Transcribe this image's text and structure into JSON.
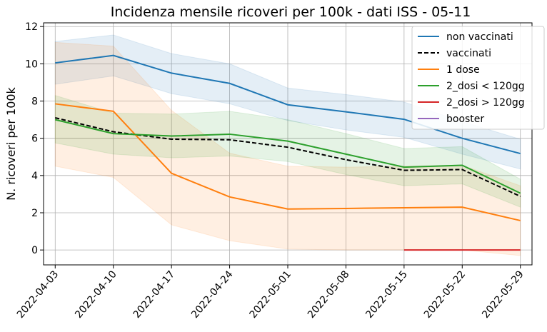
{
  "chart_data": {
    "type": "line",
    "title": "Incidenza mensile ricoveri per 100k - dati ISS - 05-11",
    "xlabel": "",
    "ylabel": "N. ricoveri per 100k",
    "x": [
      "2022-04-03",
      "2022-04-10",
      "2022-04-17",
      "2022-04-24",
      "2022-05-01",
      "2022-05-08",
      "2022-05-15",
      "2022-05-22",
      "2022-05-29"
    ],
    "ylim": [
      -0.8,
      12.2
    ],
    "yticks": [
      0,
      2,
      4,
      6,
      8,
      10,
      12
    ],
    "grid": true,
    "legend_position": "top-right",
    "series": [
      {
        "name": "non vaccinati",
        "color": "#1f77b4",
        "dash": "solid",
        "values": [
          10.05,
          10.45,
          9.5,
          8.95,
          7.8,
          7.42,
          7.02,
          6.0,
          5.18
        ],
        "band_low": [
          8.9,
          9.35,
          8.4,
          7.85,
          6.95,
          6.45,
          6.05,
          5.15,
          4.35
        ],
        "band_high": [
          11.2,
          11.55,
          10.55,
          10.0,
          8.7,
          8.35,
          7.95,
          6.9,
          5.95
        ]
      },
      {
        "name": "vaccinati",
        "color": "#000000",
        "dash": "dashed",
        "values": [
          7.1,
          6.35,
          5.95,
          5.92,
          5.52,
          4.85,
          4.28,
          4.32,
          2.88
        ],
        "band_low": null,
        "band_high": null
      },
      {
        "name": "1 dose",
        "color": "#ff7f0e",
        "dash": "solid",
        "values": [
          7.85,
          7.45,
          4.12,
          2.85,
          2.2,
          2.23,
          2.27,
          2.3,
          1.58
        ],
        "band_low": [
          4.5,
          3.9,
          1.35,
          0.5,
          0.05,
          0.0,
          0.0,
          0.0,
          -0.3
        ],
        "band_high": [
          11.15,
          10.95,
          7.5,
          5.2,
          4.5,
          4.45,
          4.5,
          4.55,
          3.45
        ]
      },
      {
        "name": "2_dosi < 120gg",
        "color": "#2ca02c",
        "dash": "solid",
        "values": [
          7.0,
          6.25,
          6.12,
          6.22,
          5.85,
          5.15,
          4.45,
          4.55,
          3.05
        ],
        "band_low": [
          5.75,
          5.15,
          4.95,
          5.05,
          4.75,
          4.05,
          3.45,
          3.55,
          2.3
        ],
        "band_high": [
          8.3,
          7.35,
          7.3,
          7.45,
          7.0,
          6.25,
          5.45,
          5.55,
          3.8
        ]
      },
      {
        "name": "2_dosi > 120gg",
        "color": "#d62728",
        "dash": "solid",
        "values": [
          null,
          null,
          null,
          null,
          null,
          null,
          0.0,
          0.0,
          0.0
        ],
        "band_low": null,
        "band_high": null
      },
      {
        "name": "booster",
        "color": "#9467bd",
        "dash": "solid",
        "values": [
          null,
          null,
          null,
          null,
          null,
          null,
          null,
          null,
          null
        ],
        "band_low": null,
        "band_high": null
      }
    ]
  }
}
